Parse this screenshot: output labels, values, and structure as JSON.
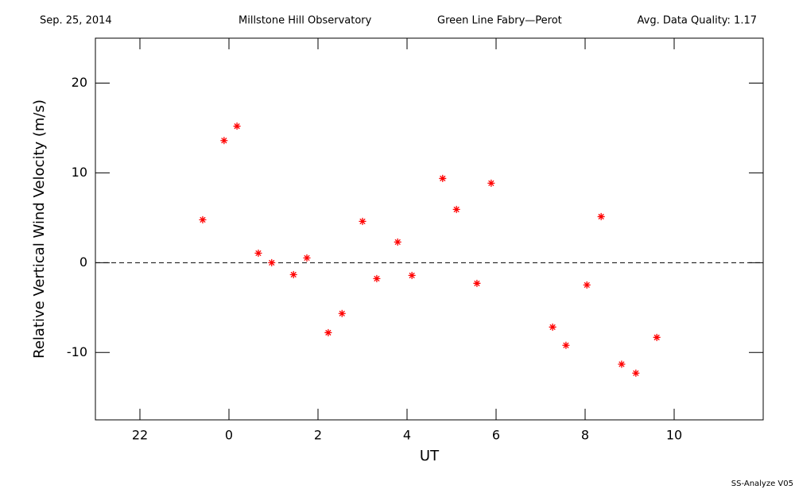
{
  "chart_data": {
    "type": "scatter",
    "header": [
      "Sep. 25, 2014",
      "Millstone Hill Observatory",
      "Green Line Fabry—Perot",
      "Avg. Data Quality: 1.17"
    ],
    "footer": "SS-Analyze V05",
    "x_label": "UT",
    "y_label": "Relative Vertical Wind Velocity (m/s)",
    "xlim": [
      -3,
      12
    ],
    "ylim": [
      -17.5,
      25
    ],
    "xticks": [
      {
        "value": -2,
        "label": "22"
      },
      0,
      2,
      4,
      6,
      8,
      10
    ],
    "yticks": [
      -10,
      0,
      10,
      20
    ],
    "hline": 0,
    "series": [
      {
        "color": "#ff0000",
        "x": [
          -0.59,
          -0.11,
          0.18,
          0.66,
          0.96,
          1.45,
          1.75,
          2.23,
          2.54,
          3.0,
          3.32,
          3.79,
          4.11,
          4.8,
          5.11,
          5.57,
          5.89,
          7.27,
          7.57,
          8.04,
          8.36,
          8.82,
          9.14,
          9.61
        ],
        "values": [
          4.78,
          13.6,
          15.2,
          1.06,
          0,
          -1.33,
          0.53,
          -7.79,
          -5.66,
          4.6,
          -1.77,
          2.3,
          -1.42,
          9.38,
          5.93,
          -2.3,
          8.85,
          -7.17,
          -9.2,
          -2.48,
          5.13,
          -11.3,
          -12.3,
          -8.32
        ]
      }
    ]
  }
}
